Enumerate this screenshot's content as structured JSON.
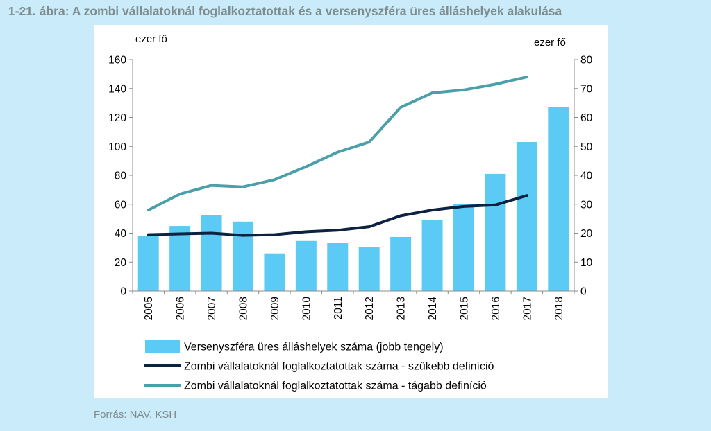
{
  "figure": {
    "title": "1-21. ábra: A zombi vállalatoknál foglalkoztatottak és a versenyszféra üres álláshelyek alakulása",
    "source": "Forrás: NAV, KSH"
  },
  "chart_data": {
    "type": "bar",
    "categories": [
      "2005",
      "2006",
      "2007",
      "2008",
      "2009",
      "2010",
      "2011",
      "2012",
      "2013",
      "2014",
      "2015",
      "2016",
      "2017",
      "2018"
    ],
    "y_left": {
      "unit_label": "ezer fő",
      "range": [
        0,
        160
      ],
      "ticks": [
        "0",
        "20",
        "40",
        "60",
        "80",
        "100",
        "120",
        "140",
        "160"
      ]
    },
    "y_right": {
      "unit_label": "ezer fő",
      "range": [
        0,
        80
      ],
      "ticks": [
        "0",
        "10",
        "20",
        "30",
        "40",
        "50",
        "60",
        "70",
        "80"
      ]
    },
    "grid": false,
    "legend_position": "bottom",
    "series": [
      {
        "name": "Versenyszféra üres álláshelyek száma (jobb tengely)",
        "type": "bar",
        "axis": "right",
        "color": "#5bcbf5",
        "values": [
          19,
          22.5,
          26.2,
          24,
          13,
          17.3,
          16.7,
          15.2,
          18.7,
          24.5,
          30,
          40.5,
          51.5,
          63.5
        ]
      },
      {
        "name": "Zombi vállalatoknál foglalkoztatottak száma - szűkebb definíció",
        "type": "line",
        "axis": "left",
        "color": "#0d2140",
        "values": [
          39,
          39.5,
          40,
          38.5,
          39,
          41,
          42,
          44.5,
          52,
          56,
          58.5,
          59.5,
          66,
          null
        ]
      },
      {
        "name": "Zombi vállalatoknál foglalkoztatottak száma - tágabb definíció",
        "type": "line",
        "axis": "left",
        "color": "#4a9fa8",
        "values": [
          56,
          67,
          73,
          72,
          77,
          86,
          96,
          103,
          127,
          137,
          139,
          143,
          148,
          null
        ]
      }
    ]
  }
}
